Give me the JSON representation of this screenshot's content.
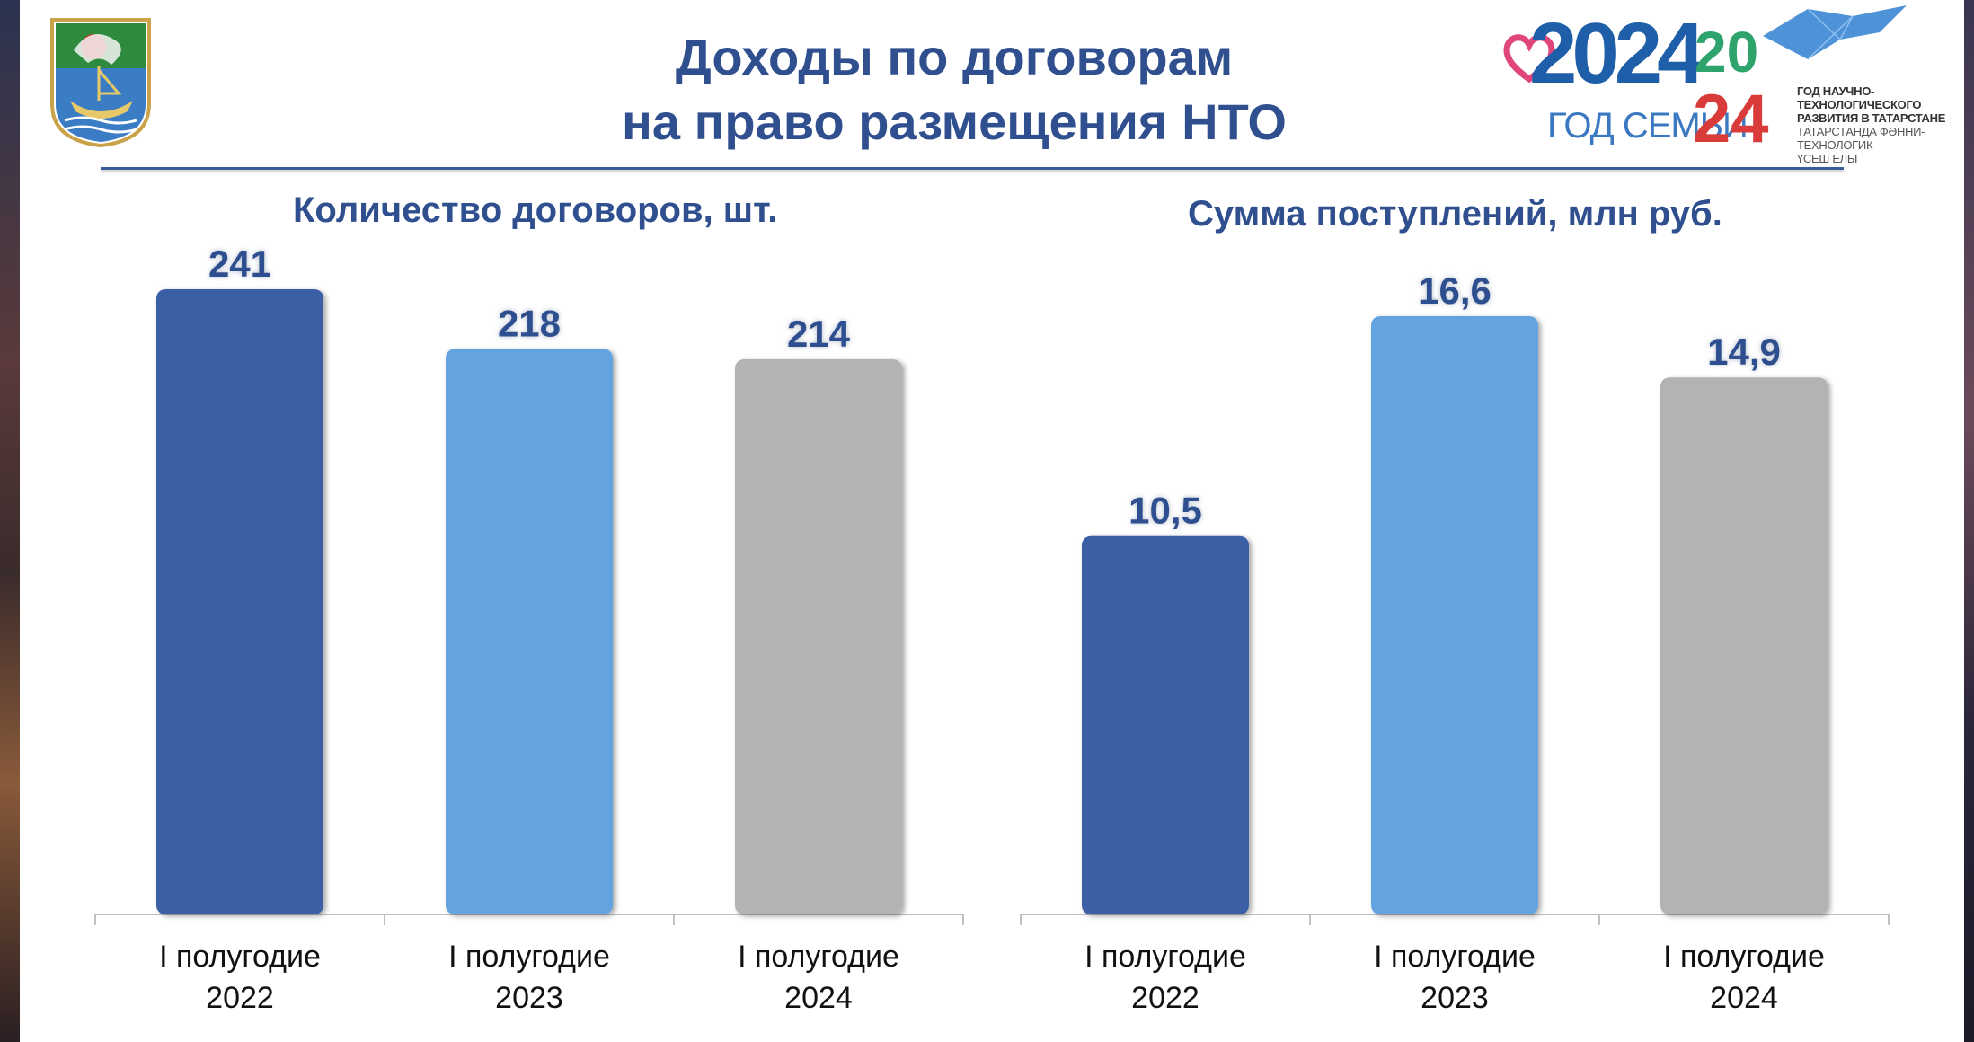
{
  "page": {
    "title": "Доходы по договорам\nна право размещения НТО"
  },
  "logo": {
    "year": "2024",
    "year_text": "ГОД СЕМЬИ",
    "year_number_right_top": "20",
    "year_number_right_bottom": "24",
    "caption_ru": "ГОД НАУЧНО-ТЕХНОЛОГИЧЕСКОГО\nРАЗВИТИЯ В ТАТАРСТАНЕ",
    "caption_tt": "ТАТАРСТАНДА ФӘННИ-ТЕХНОЛОГИК\nҮСЕШ ЕЛЫ"
  },
  "chart_data": [
    {
      "type": "bar",
      "title": "Количество договоров, шт.",
      "categories": [
        "I полугодие\n2022",
        "I полугодие\n2023",
        "I полугодие\n2024"
      ],
      "values": [
        241,
        218,
        214
      ],
      "value_labels": [
        "241",
        "218",
        "214"
      ],
      "colors": [
        "#3a5fa5",
        "#64a4e0",
        "#b3b3b3"
      ],
      "ylim": [
        0,
        241
      ],
      "xlabel": "",
      "ylabel": "",
      "grid": false,
      "data_labels": true
    },
    {
      "type": "bar",
      "title": "Сумма поступлений, млн руб.",
      "categories": [
        "I полугодие\n2022",
        "I полугодие\n2023",
        "I полугодие\n2024"
      ],
      "values": [
        10.5,
        16.6,
        14.9
      ],
      "value_labels": [
        "10,5",
        "16,6",
        "14,9"
      ],
      "colors": [
        "#3a5fa5",
        "#64a4e0",
        "#b3b3b3"
      ],
      "ylim": [
        0,
        16.6
      ],
      "xlabel": "",
      "ylabel": "",
      "grid": false,
      "data_labels": true
    }
  ]
}
